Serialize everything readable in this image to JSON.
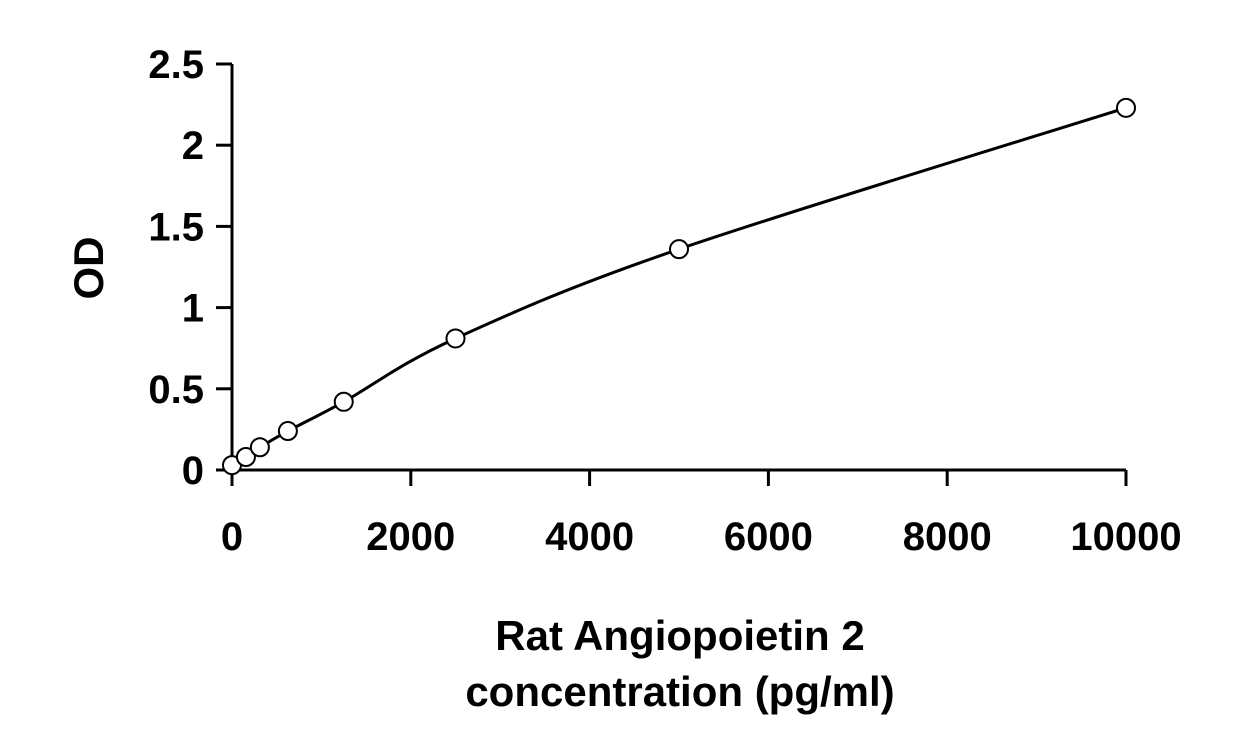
{
  "chart_data": {
    "type": "scatter",
    "title": "",
    "xlabel": [
      "Rat Angiopoietin 2",
      "concentration (pg/ml)"
    ],
    "ylabel": "OD",
    "xlim": [
      0,
      10000
    ],
    "ylim": [
      0,
      2.5
    ],
    "xticks": [
      "0",
      "2000",
      "4000",
      "6000",
      "8000",
      "10000"
    ],
    "yticks": [
      "0",
      "0.5",
      "1",
      "1.5",
      "2",
      "2.5"
    ],
    "grid": false,
    "legend": "none",
    "series": [
      {
        "points": [
          {
            "x": 0,
            "y": 0.03
          },
          {
            "x": 156,
            "y": 0.08
          },
          {
            "x": 312,
            "y": 0.14
          },
          {
            "x": 625,
            "y": 0.24
          },
          {
            "x": 1250,
            "y": 0.42
          },
          {
            "x": 2500,
            "y": 0.81
          },
          {
            "x": 5000,
            "y": 1.36
          },
          {
            "x": 10000,
            "y": 2.23
          }
        ],
        "marker": "open-circle",
        "fit": "smooth-curve",
        "color": "#000000"
      }
    ]
  }
}
